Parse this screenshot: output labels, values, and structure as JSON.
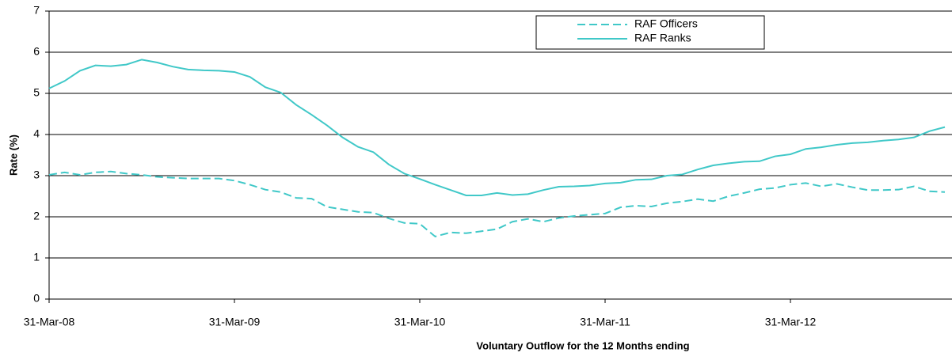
{
  "chart_data": {
    "type": "line",
    "x_label": "Voluntary Outflow for the 12 Months ending",
    "y_label": "Rate (%)",
    "categories": [
      "31-Mar-08",
      null,
      null,
      null,
      null,
      null,
      null,
      null,
      null,
      null,
      null,
      null,
      "31-Mar-09",
      null,
      null,
      null,
      null,
      null,
      null,
      null,
      null,
      null,
      null,
      null,
      "31-Mar-10",
      null,
      null,
      null,
      null,
      null,
      null,
      null,
      null,
      null,
      null,
      null,
      "31-Mar-11",
      null,
      null,
      null,
      null,
      null,
      null,
      null,
      null,
      null,
      null,
      null,
      "31-Mar-12",
      null,
      null,
      null,
      null,
      null,
      null,
      null,
      null,
      null,
      null
    ],
    "series": [
      {
        "name": "RAF Officers",
        "color": "#40c8c8",
        "dashed": true,
        "values": [
          3.02,
          3.08,
          3.02,
          3.08,
          3.1,
          3.05,
          3.02,
          2.97,
          2.95,
          2.93,
          2.93,
          2.93,
          2.88,
          2.78,
          2.66,
          2.6,
          2.46,
          2.44,
          2.24,
          2.18,
          2.12,
          2.1,
          1.96,
          1.85,
          1.83,
          1.52,
          1.62,
          1.6,
          1.65,
          1.7,
          1.88,
          1.95,
          1.88,
          1.97,
          2.02,
          2.05,
          2.08,
          2.23,
          2.27,
          2.25,
          2.33,
          2.37,
          2.43,
          2.38,
          2.5,
          2.58,
          2.67,
          2.7,
          2.78,
          2.82,
          2.74,
          2.8,
          2.72,
          2.65,
          2.65,
          2.66,
          2.74,
          2.62,
          2.6
        ]
      },
      {
        "name": "RAF Ranks",
        "color": "#40c8c8",
        "dashed": false,
        "values": [
          5.12,
          5.3,
          5.55,
          5.68,
          5.66,
          5.7,
          5.82,
          5.75,
          5.65,
          5.58,
          5.56,
          5.55,
          5.52,
          5.4,
          5.15,
          5.02,
          4.72,
          4.48,
          4.22,
          3.93,
          3.7,
          3.57,
          3.27,
          3.05,
          2.92,
          2.78,
          2.65,
          2.52,
          2.52,
          2.58,
          2.53,
          2.55,
          2.65,
          2.73,
          2.74,
          2.76,
          2.81,
          2.83,
          2.9,
          2.91,
          3.0,
          3.03,
          3.15,
          3.25,
          3.3,
          3.34,
          3.35,
          3.47,
          3.52,
          3.65,
          3.69,
          3.75,
          3.79,
          3.81,
          3.85,
          3.88,
          3.93,
          4.08,
          4.18
        ]
      }
    ],
    "ylim": [
      0,
      7
    ],
    "yticks": [
      0,
      1,
      2,
      3,
      4,
      5,
      6,
      7
    ],
    "grid": true,
    "legend": "top-right"
  }
}
